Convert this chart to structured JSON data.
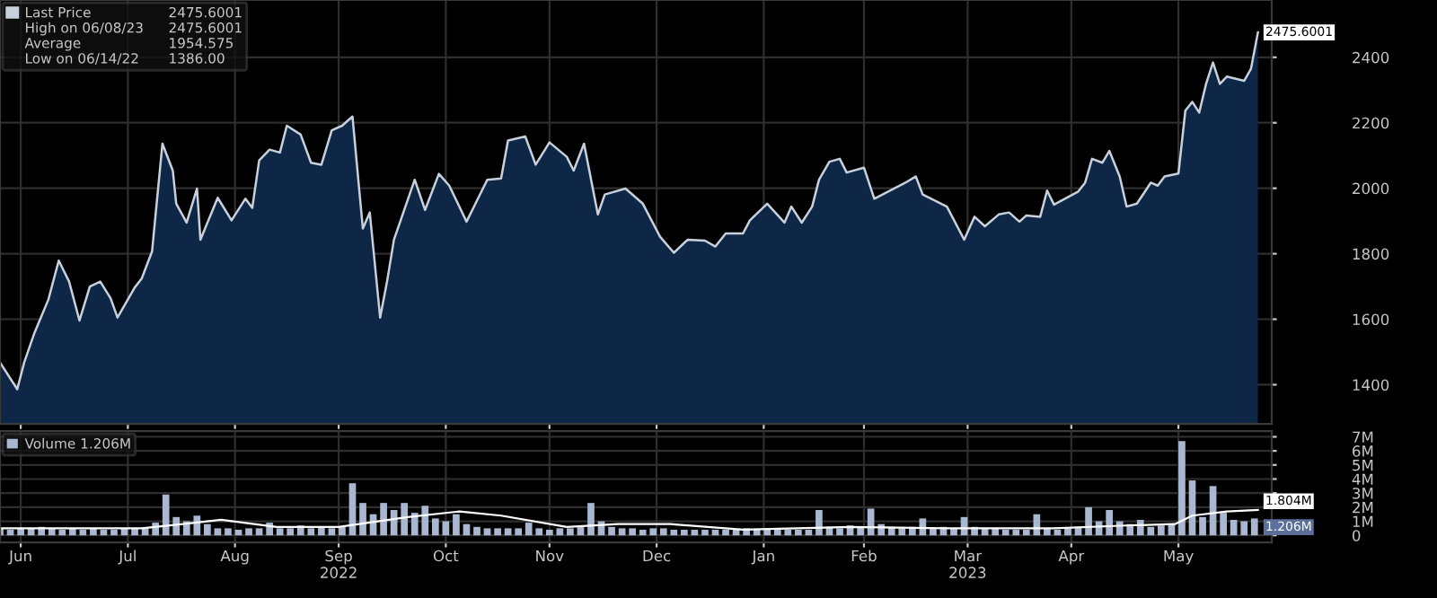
{
  "chart_data": [
    {
      "type": "area",
      "xlim": [
        "2022-06-09",
        "2023-06-12"
      ],
      "ylim": [
        1280,
        2575
      ],
      "yticks": [
        1400,
        1600,
        1800,
        2000,
        2200,
        2400
      ],
      "tick_labels": "y",
      "grid": true,
      "legend": "top left",
      "series": [
        {
          "name": "Last Price",
          "color": "#c8d0dc",
          "x": [
            "2022-06-09",
            "2022-06-14",
            "2022-06-16",
            "2022-06-19",
            "2022-06-23",
            "2022-06-26",
            "2022-06-29",
            "2022-07-02",
            "2022-07-05",
            "2022-07-08",
            "2022-07-11",
            "2022-07-13",
            "2022-07-18",
            "2022-07-20",
            "2022-07-23",
            "2022-07-26",
            "2022-07-29",
            "2022-07-30",
            "2022-08-02",
            "2022-08-05",
            "2022-08-06",
            "2022-08-11",
            "2022-08-15",
            "2022-08-19",
            "2022-08-21",
            "2022-08-23",
            "2022-08-26",
            "2022-08-29",
            "2022-08-31",
            "2022-09-04",
            "2022-09-07",
            "2022-09-10",
            "2022-09-13",
            "2022-09-16",
            "2022-09-19",
            "2022-09-21",
            "2022-09-22",
            "2022-09-24",
            "2022-09-27",
            "2022-09-29",
            "2022-10-01",
            "2022-10-07",
            "2022-10-10",
            "2022-10-14",
            "2022-10-17",
            "2022-10-22",
            "2022-10-25",
            "2022-10-28",
            "2022-11-01",
            "2022-11-03",
            "2022-11-08",
            "2022-11-11",
            "2022-11-15",
            "2022-11-20",
            "2022-11-22",
            "2022-11-25",
            "2022-11-29",
            "2022-12-01",
            "2022-12-07",
            "2022-12-12",
            "2022-12-17",
            "2022-12-21",
            "2022-12-25",
            "2022-12-30",
            "2023-01-02",
            "2023-01-05",
            "2023-01-10",
            "2023-01-12",
            "2023-01-17",
            "2023-01-22",
            "2023-01-24",
            "2023-01-27",
            "2023-01-30",
            "2023-02-01",
            "2023-02-04",
            "2023-02-07",
            "2023-02-09",
            "2023-02-14",
            "2023-02-17",
            "2023-02-21",
            "2023-02-26",
            "2023-03-01",
            "2023-03-03",
            "2023-03-10",
            "2023-03-15",
            "2023-03-18",
            "2023-03-21",
            "2023-03-25",
            "2023-03-28",
            "2023-03-31",
            "2023-04-02",
            "2023-04-06",
            "2023-04-08",
            "2023-04-10",
            "2023-04-17",
            "2023-04-19",
            "2023-04-21",
            "2023-04-24",
            "2023-04-26",
            "2023-04-29",
            "2023-05-01",
            "2023-05-04",
            "2023-05-08",
            "2023-05-10",
            "2023-05-12",
            "2023-05-16",
            "2023-05-18",
            "2023-05-20",
            "2023-05-22",
            "2023-05-24",
            "2023-05-26",
            "2023-05-28",
            "2023-05-30",
            "2023-06-04",
            "2023-06-06",
            "2023-06-08"
          ],
          "values": [
            1468,
            1386,
            1468,
            1559,
            1660,
            1779,
            1715,
            1596,
            1700,
            1715,
            1664,
            1605,
            1697,
            1724,
            1807,
            2136,
            2054,
            1953,
            1895,
            1999,
            1843,
            1971,
            1902,
            1968,
            1940,
            2085,
            2118,
            2109,
            2191,
            2164,
            2078,
            2072,
            2177,
            2191,
            2219,
            1990,
            1877,
            1926,
            1605,
            1715,
            1843,
            2026,
            1934,
            2044,
            2008,
            1898,
            1962,
            2026,
            2030,
            2146,
            2158,
            2072,
            2140,
            2096,
            2054,
            2136,
            1920,
            1981,
            1999,
            1953,
            1852,
            1803,
            1843,
            1840,
            1822,
            1862,
            1862,
            1902,
            1953,
            1895,
            1944,
            1895,
            1944,
            2026,
            2081,
            2090,
            2048,
            2063,
            1968,
            1990,
            2017,
            2036,
            1981,
            1944,
            1843,
            1913,
            1884,
            1920,
            1926,
            1898,
            1917,
            1913,
            1993,
            1950,
            1990,
            2017,
            2090,
            2078,
            2114,
            2036,
            1944,
            1953,
            2017,
            2008,
            2036,
            2045,
            2237,
            2264,
            2231,
            2319,
            2384,
            2319,
            2341,
            2328,
            2365,
            2476
          ]
        }
      ],
      "annotations": [
        "2475.6001",
        "High on 06/08/23",
        "2475.6001",
        "Average",
        "1954.575",
        "Low on 06/14/22",
        "1386.00",
        {
          "text": "2475.6001",
          "x": "2023-06-08",
          "y": 2476
        }
      ]
    },
    {
      "type": "bar",
      "xlim": [
        "2022-06-09",
        "2023-06-12"
      ],
      "ylim": [
        -0.5,
        7.4
      ],
      "grid": true,
      "legend": "top left",
      "yticks": [
        {
          "value": 0,
          "label": "0"
        },
        {
          "value": 1,
          "label": "1M"
        },
        {
          "value": 2,
          "label": "2M"
        },
        {
          "value": 3,
          "label": "3M"
        },
        {
          "value": 4,
          "label": "4M"
        },
        {
          "value": 5,
          "label": "5M"
        },
        {
          "value": 6,
          "label": "6M"
        },
        {
          "value": 7,
          "label": "7M"
        }
      ],
      "xticks": [
        {
          "value": "2022-06-15",
          "label": "Jun"
        },
        {
          "value": "2022-07-16",
          "label": "Jul"
        },
        {
          "value": "2022-08-16",
          "label": "Aug"
        },
        {
          "value": "2022-09-15",
          "label": "Sep\n2022"
        },
        {
          "value": "2022-10-16",
          "label": "Oct"
        },
        {
          "value": "2022-11-15",
          "label": "Nov"
        },
        {
          "value": "2022-12-16",
          "label": "Dec"
        },
        {
          "value": "2023-01-16",
          "label": "Jan"
        },
        {
          "value": "2023-02-14",
          "label": "Feb"
        },
        {
          "value": "2023-03-16",
          "label": "Mar\n2023"
        },
        {
          "value": "2023-04-15",
          "label": "Apr"
        },
        {
          "value": "2023-05-16",
          "label": "May"
        }
      ],
      "series": [
        {
          "name": "Volume 1.206M",
          "color": "#a9b7d0",
          "x": [
            "2022-06-09",
            "2022-06-12",
            "2022-06-15",
            "2022-06-18",
            "2022-06-21",
            "2022-06-24",
            "2022-06-27",
            "2022-06-30",
            "2022-07-03",
            "2022-07-06",
            "2022-07-09",
            "2022-07-12",
            "2022-07-15",
            "2022-07-18",
            "2022-07-21",
            "2022-07-24",
            "2022-07-27",
            "2022-07-30",
            "2022-08-02",
            "2022-08-05",
            "2022-08-08",
            "2022-08-11",
            "2022-08-14",
            "2022-08-17",
            "2022-08-20",
            "2022-08-23",
            "2022-08-26",
            "2022-08-29",
            "2022-09-01",
            "2022-09-04",
            "2022-09-07",
            "2022-09-10",
            "2022-09-13",
            "2022-09-16",
            "2022-09-19",
            "2022-09-22",
            "2022-09-25",
            "2022-09-28",
            "2022-10-01",
            "2022-10-04",
            "2022-10-07",
            "2022-10-10",
            "2022-10-13",
            "2022-10-16",
            "2022-10-19",
            "2022-10-22",
            "2022-10-25",
            "2022-10-28",
            "2022-10-31",
            "2022-11-03",
            "2022-11-06",
            "2022-11-09",
            "2022-11-12",
            "2022-11-15",
            "2022-11-18",
            "2022-11-21",
            "2022-11-24",
            "2022-11-27",
            "2022-11-30",
            "2022-12-03",
            "2022-12-06",
            "2022-12-09",
            "2022-12-12",
            "2022-12-15",
            "2022-12-18",
            "2022-12-21",
            "2022-12-24",
            "2022-12-27",
            "2022-12-30",
            "2023-01-02",
            "2023-01-05",
            "2023-01-08",
            "2023-01-11",
            "2023-01-14",
            "2023-01-17",
            "2023-01-20",
            "2023-01-23",
            "2023-01-26",
            "2023-01-29",
            "2023-02-01",
            "2023-02-04",
            "2023-02-07",
            "2023-02-10",
            "2023-02-13",
            "2023-02-16",
            "2023-02-19",
            "2023-02-22",
            "2023-02-25",
            "2023-02-28",
            "2023-03-03",
            "2023-03-06",
            "2023-03-09",
            "2023-03-12",
            "2023-03-15",
            "2023-03-18",
            "2023-03-21",
            "2023-03-24",
            "2023-03-27",
            "2023-03-30",
            "2023-04-02",
            "2023-04-05",
            "2023-04-08",
            "2023-04-11",
            "2023-04-14",
            "2023-04-17",
            "2023-04-20",
            "2023-04-23",
            "2023-04-26",
            "2023-04-29",
            "2023-05-02",
            "2023-05-05",
            "2023-05-08",
            "2023-05-11",
            "2023-05-14",
            "2023-05-17",
            "2023-05-20",
            "2023-05-23",
            "2023-05-26",
            "2023-05-29",
            "2023-06-01",
            "2023-06-04",
            "2023-06-07"
          ],
          "values": [
            0.5,
            0.4,
            0.5,
            0.5,
            0.6,
            0.5,
            0.4,
            0.5,
            0.4,
            0.5,
            0.4,
            0.4,
            0.5,
            0.5,
            0.5,
            0.9,
            2.9,
            1.3,
            1.0,
            1.4,
            0.8,
            0.5,
            0.5,
            0.4,
            0.5,
            0.5,
            0.9,
            0.5,
            0.5,
            0.7,
            0.5,
            0.6,
            0.5,
            0.6,
            3.7,
            2.3,
            1.5,
            2.3,
            1.8,
            2.3,
            1.6,
            2.1,
            1.2,
            1.0,
            1.5,
            0.8,
            0.6,
            0.5,
            0.5,
            0.5,
            0.5,
            0.9,
            0.5,
            0.4,
            0.5,
            0.5,
            0.6,
            2.3,
            1.0,
            0.6,
            0.5,
            0.5,
            0.4,
            0.5,
            0.5,
            0.4,
            0.4,
            0.4,
            0.4,
            0.4,
            0.4,
            0.4,
            0.5,
            0.4,
            0.4,
            0.4,
            0.4,
            0.4,
            0.4,
            1.8,
            0.6,
            0.5,
            0.7,
            0.6,
            1.9,
            0.8,
            0.6,
            0.5,
            0.6,
            1.2,
            0.5,
            0.6,
            0.5,
            1.3,
            0.6,
            0.5,
            0.5,
            0.4,
            0.4,
            0.4,
            1.5,
            0.5,
            0.4,
            0.5,
            0.6,
            2.0,
            1.0,
            1.8,
            1.0,
            0.8,
            1.1,
            0.6,
            0.7,
            0.8,
            6.7,
            3.9,
            1.3,
            3.5,
            1.6,
            1.1,
            1.0,
            1.2
          ]
        },
        {
          "type": "line",
          "color": "#ffffff",
          "x": [
            "2022-06-09",
            "2022-07-20",
            "2022-08-01",
            "2022-08-12",
            "2022-08-28",
            "2022-09-15",
            "2022-10-05",
            "2022-10-20",
            "2022-11-01",
            "2022-11-20",
            "2022-12-05",
            "2022-12-20",
            "2023-01-10",
            "2023-02-10",
            "2023-03-10",
            "2023-04-10",
            "2023-05-01",
            "2023-05-15",
            "2023-05-20",
            "2023-05-30",
            "2023-06-08"
          ],
          "values": [
            0.5,
            0.5,
            0.8,
            1.1,
            0.6,
            0.6,
            1.3,
            1.7,
            1.4,
            0.6,
            0.8,
            0.8,
            0.4,
            0.6,
            0.5,
            0.5,
            0.7,
            0.8,
            1.4,
            1.7,
            1.8
          ]
        }
      ],
      "annotations": [
        {
          "text": "1.804M",
          "x": "2023-06-08",
          "y": 1.8
        },
        {
          "text": "1.206M",
          "x": "2023-06-08",
          "y": 1.2
        }
      ]
    }
  ]
}
